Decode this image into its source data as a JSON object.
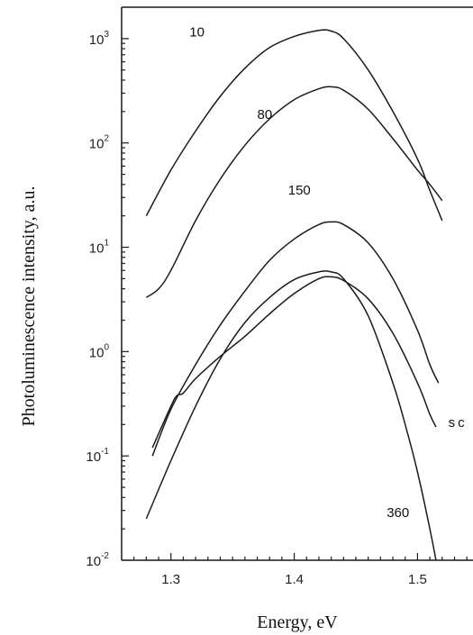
{
  "chart_data": {
    "type": "line",
    "xlabel": "Energy, eV",
    "ylabel": "Photoluminescence intensity, a.u.",
    "xlim": [
      1.26,
      1.545
    ],
    "ylim": [
      0.01,
      2000
    ],
    "yscale": "log",
    "x_ticks": [
      {
        "value": 1.3,
        "label": "1.3"
      },
      {
        "value": 1.4,
        "label": "1.4"
      },
      {
        "value": 1.5,
        "label": "1.5"
      }
    ],
    "y_ticks": [
      {
        "value": 0.01,
        "base": "10",
        "exp": "-2"
      },
      {
        "value": 0.1,
        "base": "10",
        "exp": "-1"
      },
      {
        "value": 1,
        "base": "10",
        "exp": "0"
      },
      {
        "value": 10,
        "base": "10",
        "exp": "1"
      },
      {
        "value": 100,
        "base": "10",
        "exp": "2"
      },
      {
        "value": 1000,
        "base": "10",
        "exp": "3"
      }
    ],
    "grid": false,
    "series": [
      {
        "name": "10",
        "x": [
          1.28,
          1.3,
          1.32,
          1.34,
          1.36,
          1.38,
          1.4,
          1.42,
          1.43,
          1.44,
          1.46,
          1.48,
          1.5,
          1.51,
          1.52
        ],
        "y": [
          20,
          55,
          130,
          280,
          520,
          820,
          1050,
          1200,
          1180,
          1000,
          500,
          200,
          70,
          35,
          18
        ]
      },
      {
        "name": "80",
        "x": [
          1.28,
          1.29,
          1.3,
          1.32,
          1.34,
          1.36,
          1.38,
          1.4,
          1.42,
          1.43,
          1.44,
          1.46,
          1.48,
          1.5,
          1.51,
          1.52
        ],
        "y": [
          3.3,
          4,
          6,
          18,
          45,
          95,
          170,
          260,
          330,
          345,
          320,
          210,
          110,
          55,
          40,
          28
        ]
      },
      {
        "name": "150",
        "x": [
          1.285,
          1.3,
          1.32,
          1.34,
          1.36,
          1.38,
          1.4,
          1.42,
          1.43,
          1.44,
          1.46,
          1.48,
          1.5,
          1.51,
          1.517
        ],
        "y": [
          0.1,
          0.28,
          0.75,
          1.8,
          3.8,
          7.5,
          12,
          16.5,
          17.5,
          16.5,
          11,
          5,
          1.6,
          0.75,
          0.5
        ]
      },
      {
        "name": "sc",
        "x": [
          1.285,
          1.3,
          1.305,
          1.31,
          1.32,
          1.34,
          1.36,
          1.38,
          1.4,
          1.42,
          1.43,
          1.44,
          1.46,
          1.48,
          1.5,
          1.51,
          1.515
        ],
        "y": [
          0.12,
          0.3,
          0.38,
          0.4,
          0.55,
          0.9,
          1.4,
          2.3,
          3.6,
          5,
          5.2,
          4.8,
          3.2,
          1.5,
          0.5,
          0.25,
          0.19
        ]
      },
      {
        "name": "360",
        "x": [
          1.28,
          1.3,
          1.32,
          1.34,
          1.36,
          1.38,
          1.4,
          1.42,
          1.43,
          1.44,
          1.46,
          1.48,
          1.49,
          1.5,
          1.51,
          1.515
        ],
        "y": [
          0.025,
          0.09,
          0.3,
          0.85,
          1.9,
          3.3,
          4.9,
          5.8,
          5.8,
          5,
          2.2,
          0.5,
          0.2,
          0.07,
          0.02,
          0.01
        ]
      }
    ],
    "annotations": [
      "10",
      "80",
      "150",
      "sc",
      "360"
    ]
  }
}
